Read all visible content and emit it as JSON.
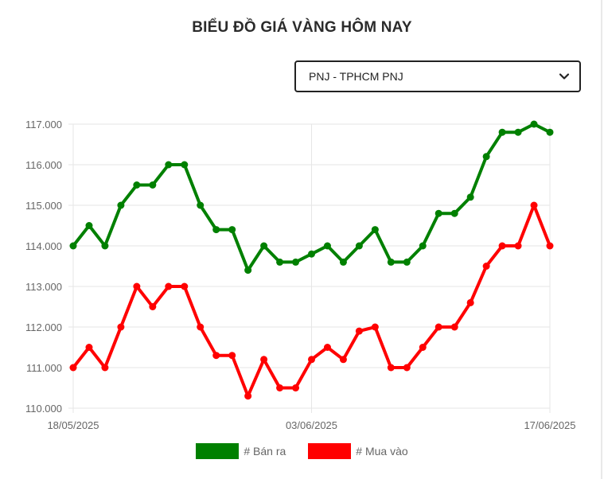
{
  "title": "BIỂU ĐỒ GIÁ VÀNG HÔM NAY",
  "select": {
    "value": "PNJ - TPHCM PNJ",
    "icon": "chevron-down-icon"
  },
  "colors": {
    "sell": "#008000",
    "buy": "#ff0000",
    "grid": "#e6e6e6",
    "tick": "#666666"
  },
  "chart_data": {
    "type": "line",
    "x_tick_labels": [
      "18/05/2025",
      "03/06/2025",
      "17/06/2025"
    ],
    "y_tick_labels": [
      "110.000",
      "111.000",
      "112.000",
      "113.000",
      "114.000",
      "115.000",
      "116.000",
      "117.000"
    ],
    "ylim": [
      110000,
      117000
    ],
    "grid": true,
    "legend_position": "bottom",
    "series": [
      {
        "name": "# Bán ra",
        "color": "#008000",
        "values": [
          114000,
          114500,
          114000,
          115000,
          115500,
          115500,
          116000,
          116000,
          115000,
          114400,
          114400,
          113400,
          114000,
          113600,
          113600,
          113800,
          114000,
          113600,
          114000,
          114400,
          113600,
          113600,
          114000,
          114800,
          114800,
          115200,
          116200,
          116800,
          116800,
          117000,
          116800
        ]
      },
      {
        "name": "# Mua vào",
        "color": "#ff0000",
        "values": [
          111000,
          111500,
          111000,
          112000,
          113000,
          112500,
          113000,
          113000,
          112000,
          111300,
          111300,
          110300,
          111200,
          110500,
          110500,
          111200,
          111500,
          111200,
          111900,
          112000,
          111000,
          111000,
          111500,
          112000,
          112000,
          112600,
          113500,
          114000,
          114000,
          115000,
          114000
        ]
      }
    ]
  }
}
